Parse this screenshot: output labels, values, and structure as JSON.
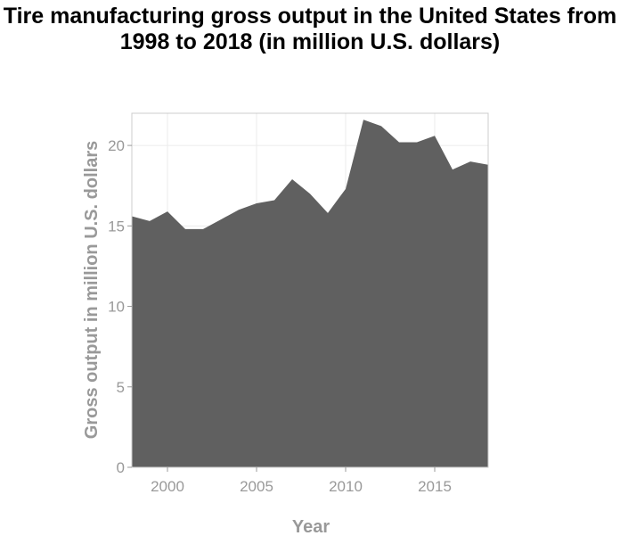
{
  "chart_data": {
    "type": "area",
    "title": "Tire manufacturing gross output in the United States from 1998 to 2018 (in million U.S. dollars)",
    "xlabel": "Year",
    "ylabel": "Gross output in million U.S. dollars",
    "x": [
      1998,
      1999,
      2000,
      2001,
      2002,
      2003,
      2004,
      2005,
      2006,
      2007,
      2008,
      2009,
      2010,
      2011,
      2012,
      2013,
      2014,
      2015,
      2016,
      2017,
      2018
    ],
    "series": [
      {
        "values": [
          15.6,
          15.3,
          15.9,
          14.8,
          14.8,
          15.4,
          16.0,
          16.4,
          16.6,
          17.9,
          17.0,
          15.8,
          17.3,
          21.6,
          21.2,
          20.2,
          20.2,
          20.6,
          18.5,
          19.0,
          18.8
        ]
      }
    ],
    "xlim": [
      1998,
      2018
    ],
    "ylim": [
      0,
      22
    ],
    "xticks": [
      2000,
      2005,
      2010,
      2015
    ],
    "yticks": [
      0,
      5,
      10,
      15,
      20
    ],
    "grid": true,
    "colors": {
      "fill": "#606060",
      "grid": "#ebebeb",
      "axis": "#cccccc"
    }
  }
}
